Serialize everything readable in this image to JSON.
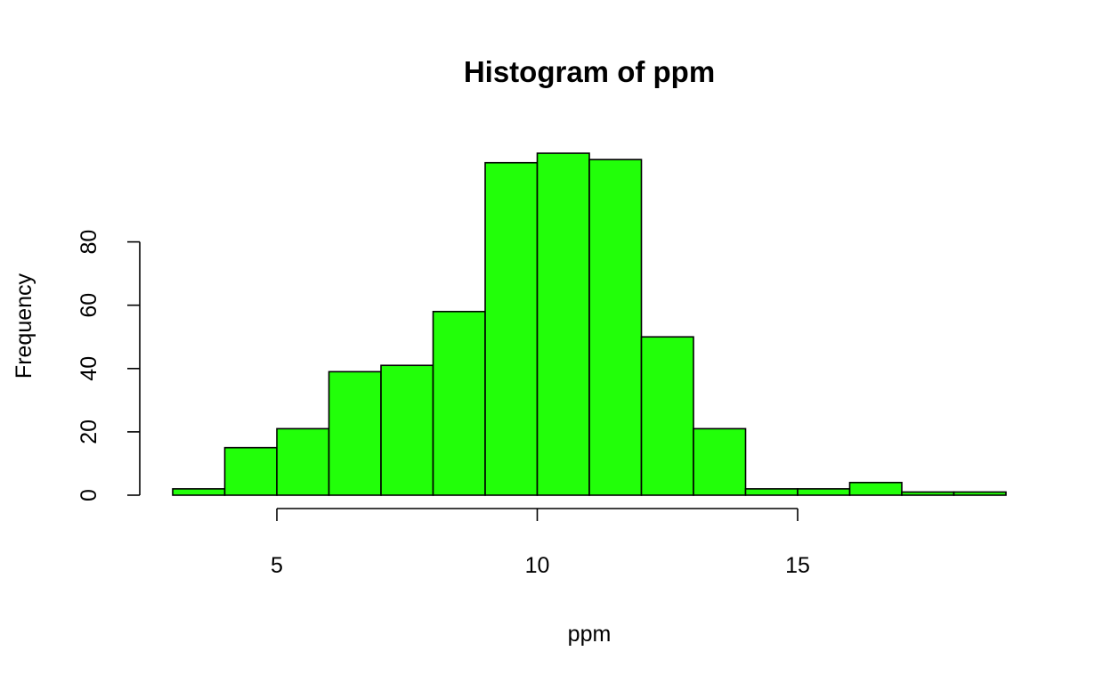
{
  "chart_data": {
    "type": "bar",
    "title": "Histogram of ppm",
    "xlabel": "ppm",
    "ylabel": "Frequency",
    "bin_edges": [
      3,
      4,
      5,
      6,
      7,
      8,
      9,
      10,
      11,
      12,
      13,
      14,
      15,
      16,
      17,
      18,
      19
    ],
    "values": [
      2,
      15,
      21,
      39,
      41,
      58,
      105,
      108,
      106,
      50,
      21,
      2,
      2,
      4,
      1,
      1
    ],
    "x_ticks": [
      5,
      10,
      15
    ],
    "y_ticks": [
      0,
      20,
      40,
      60,
      80
    ],
    "xlim": [
      3,
      19
    ],
    "ylim": [
      0,
      100
    ],
    "bar_color": "#22ff09",
    "grid": false,
    "legend": "none"
  }
}
